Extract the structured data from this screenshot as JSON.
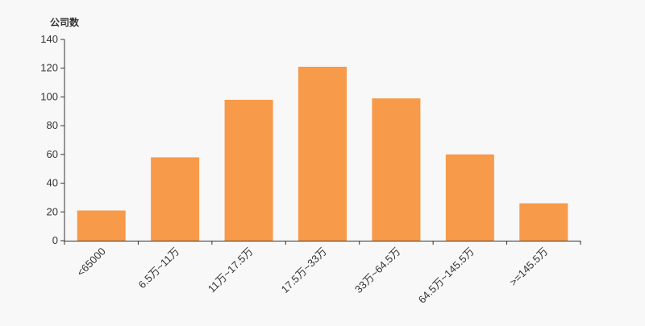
{
  "chart_data": {
    "type": "bar",
    "title": "",
    "ylabel": "公司数",
    "xlabel": "",
    "categories": [
      "<65000",
      "6.5万~11万",
      "11万~17.5万",
      "17.5万~33万",
      "33万~64.5万",
      "64.5万~145.5万",
      ">=145.5万"
    ],
    "values": [
      21,
      58,
      98,
      121,
      99,
      60,
      26
    ],
    "ylim": [
      0,
      140
    ],
    "yticks": [
      0,
      20,
      40,
      60,
      80,
      100,
      120,
      140
    ],
    "grid": false,
    "bar_color": "#f79a4a"
  }
}
